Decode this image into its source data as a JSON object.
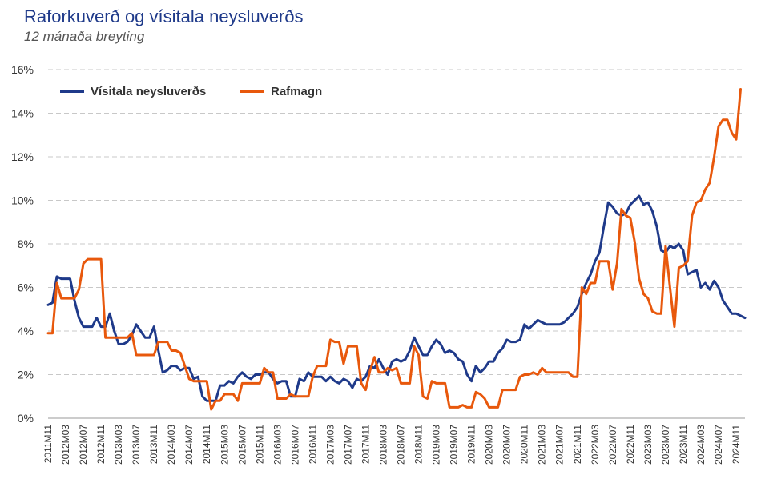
{
  "chart_data": {
    "type": "line",
    "title": "Raforkuverð og vísitala neysluverðs",
    "subtitle": "12 mánaða breyting",
    "ylim": [
      0,
      16
    ],
    "y_ticks": [
      0,
      2,
      4,
      6,
      8,
      10,
      12,
      14,
      16
    ],
    "y_tick_labels": [
      "0%",
      "2%",
      "4%",
      "6%",
      "8%",
      "10%",
      "12%",
      "14%",
      "16%"
    ],
    "grid": "horizontal-dashed",
    "legend": "top-left",
    "x_start": "2011M11",
    "x_tick_labels": [
      "2011M11",
      "2012M03",
      "2012M07",
      "2012M11",
      "2013M03",
      "2013M07",
      "2013M11",
      "2014M03",
      "2014M07",
      "2014M11",
      "2015M03",
      "2015M07",
      "2015M11",
      "2016M03",
      "2016M07",
      "2016M11",
      "2017M03",
      "2017M07",
      "2017M11",
      "2018M03",
      "2018M07",
      "2018M11",
      "2019M03",
      "2019M07",
      "2019M11",
      "2020M03",
      "2020M07",
      "2020M11",
      "2021M03",
      "2021M07",
      "2021M11",
      "2022M03",
      "2022M07",
      "2022M11",
      "2023M03",
      "2023M07",
      "2023M11",
      "2024M03",
      "2024M07",
      "2024M11"
    ],
    "series": [
      {
        "name": "Vísitala neysluverðs",
        "color": "#1f3a8a",
        "values": [
          5.2,
          5.3,
          6.5,
          6.4,
          6.4,
          6.4,
          5.4,
          4.6,
          4.2,
          4.2,
          4.2,
          4.6,
          4.2,
          4.2,
          4.8,
          4.0,
          3.4,
          3.4,
          3.5,
          3.8,
          4.3,
          4.0,
          3.7,
          3.7,
          4.2,
          3.1,
          2.1,
          2.2,
          2.4,
          2.4,
          2.2,
          2.3,
          2.3,
          1.8,
          1.9,
          1.0,
          0.8,
          0.8,
          0.8,
          1.5,
          1.5,
          1.7,
          1.6,
          1.9,
          2.1,
          1.9,
          1.8,
          2.0,
          2.0,
          2.1,
          2.1,
          1.8,
          1.6,
          1.7,
          1.7,
          1.0,
          1.0,
          1.8,
          1.7,
          2.1,
          1.9,
          1.9,
          1.9,
          1.7,
          1.9,
          1.7,
          1.6,
          1.8,
          1.7,
          1.4,
          1.8,
          1.7,
          1.9,
          2.4,
          2.3,
          2.7,
          2.3,
          2.0,
          2.6,
          2.7,
          2.6,
          2.7,
          3.1,
          3.7,
          3.3,
          2.9,
          2.9,
          3.3,
          3.6,
          3.4,
          3.0,
          3.1,
          3.0,
          2.7,
          2.6,
          2.0,
          1.7,
          2.4,
          2.1,
          2.3,
          2.6,
          2.6,
          3.0,
          3.2,
          3.6,
          3.5,
          3.5,
          3.6,
          4.3,
          4.1,
          4.3,
          4.5,
          4.4,
          4.3,
          4.3,
          4.3,
          4.3,
          4.4,
          4.6,
          4.8,
          5.1,
          5.7,
          6.2,
          6.6,
          7.2,
          7.6,
          8.8,
          9.9,
          9.7,
          9.4,
          9.3,
          9.4,
          9.8,
          10.0,
          10.2,
          9.8,
          9.9,
          9.5,
          8.8,
          7.7,
          7.6,
          7.9,
          7.8,
          8.0,
          7.7,
          6.6,
          6.7,
          6.8,
          6.0,
          6.2,
          5.9,
          6.3,
          6.0,
          5.4,
          5.1,
          4.8,
          4.8,
          4.7,
          4.6
        ]
      },
      {
        "name": "Rafmagn",
        "color": "#e8580c",
        "values": [
          3.9,
          3.9,
          6.2,
          5.5,
          5.5,
          5.5,
          5.5,
          5.9,
          7.1,
          7.3,
          7.3,
          7.3,
          7.3,
          3.7,
          3.7,
          3.7,
          3.7,
          3.7,
          3.7,
          3.9,
          2.9,
          2.9,
          2.9,
          2.9,
          2.9,
          3.5,
          3.5,
          3.5,
          3.1,
          3.1,
          3.0,
          2.4,
          1.8,
          1.7,
          1.7,
          1.7,
          1.7,
          0.4,
          0.8,
          0.8,
          1.1,
          1.1,
          1.1,
          0.8,
          1.6,
          1.6,
          1.6,
          1.6,
          1.6,
          2.3,
          2.1,
          2.1,
          0.9,
          0.9,
          0.9,
          1.1,
          1.0,
          1.0,
          1.0,
          1.0,
          1.9,
          2.4,
          2.4,
          2.4,
          3.6,
          3.5,
          3.5,
          2.5,
          3.3,
          3.3,
          3.3,
          1.6,
          1.3,
          2.2,
          2.8,
          2.1,
          2.1,
          2.3,
          2.2,
          2.3,
          1.6,
          1.6,
          1.6,
          3.3,
          2.9,
          1.0,
          0.9,
          1.7,
          1.6,
          1.6,
          1.6,
          0.5,
          0.5,
          0.5,
          0.6,
          0.5,
          0.5,
          1.2,
          1.1,
          0.9,
          0.5,
          0.5,
          0.5,
          1.3,
          1.3,
          1.3,
          1.3,
          1.9,
          2.0,
          2.0,
          2.1,
          2.0,
          2.3,
          2.1,
          2.1,
          2.1,
          2.1,
          2.1,
          2.1,
          1.9,
          1.9,
          6.0,
          5.7,
          6.2,
          6.2,
          7.2,
          7.2,
          7.2,
          5.9,
          7.1,
          9.6,
          9.3,
          9.2,
          8.1,
          6.4,
          5.7,
          5.5,
          4.9,
          4.8,
          4.8,
          7.9,
          6.0,
          4.2,
          6.9,
          7.0,
          7.2,
          9.3,
          9.9,
          10.0,
          10.5,
          10.8,
          12.0,
          13.4,
          13.7,
          13.7,
          13.1,
          12.8,
          15.1
        ]
      }
    ]
  }
}
